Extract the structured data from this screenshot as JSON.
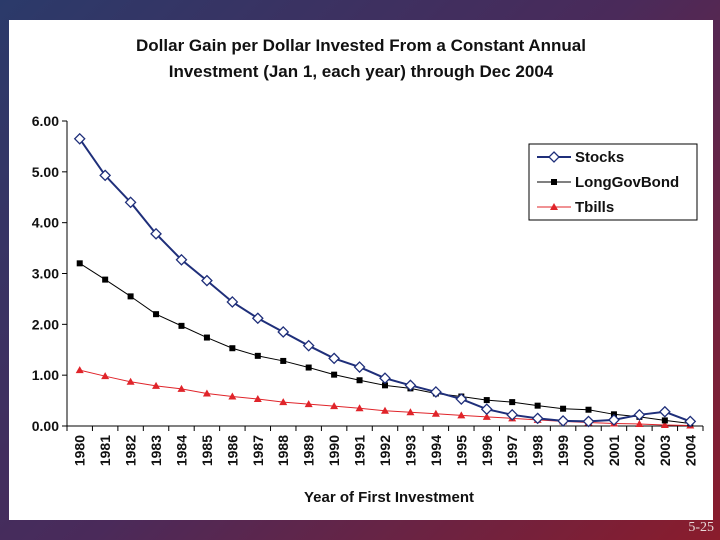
{
  "chart_data": {
    "type": "line",
    "title": [
      "Dollar Gain per Dollar Invested From a Constant Annual",
      "Investment (Jan 1, each year) through Dec 2004"
    ],
    "xlabel": "Year of First Investment",
    "ylabel": "",
    "categories": [
      "1980",
      "1981",
      "1982",
      "1983",
      "1984",
      "1985",
      "1986",
      "1987",
      "1988",
      "1989",
      "1990",
      "1991",
      "1992",
      "1993",
      "1994",
      "1995",
      "1996",
      "1997",
      "1998",
      "1999",
      "2000",
      "2001",
      "2002",
      "2003",
      "2004"
    ],
    "ylim": [
      0,
      6
    ],
    "yticks": [
      "0.00",
      "1.00",
      "2.00",
      "3.00",
      "4.00",
      "5.00",
      "6.00"
    ],
    "legend_position": "top-right",
    "series": [
      {
        "name": "Stocks",
        "color": "#1f2f7a",
        "marker": "diamond-open",
        "values": [
          5.65,
          4.93,
          4.4,
          3.78,
          3.27,
          2.86,
          2.44,
          2.12,
          1.85,
          1.58,
          1.33,
          1.16,
          0.94,
          0.8,
          0.67,
          0.53,
          0.33,
          0.22,
          0.15,
          0.1,
          0.09,
          0.12,
          0.22,
          0.28,
          0.09
        ]
      },
      {
        "name": "LongGovBond",
        "color": "#000000",
        "marker": "square",
        "values": [
          3.2,
          2.88,
          2.55,
          2.2,
          1.97,
          1.74,
          1.53,
          1.38,
          1.28,
          1.15,
          1.01,
          0.9,
          0.8,
          0.74,
          0.64,
          0.58,
          0.51,
          0.47,
          0.4,
          0.34,
          0.32,
          0.23,
          0.18,
          0.11,
          0.05
        ]
      },
      {
        "name": "Tbills",
        "color": "#e0242a",
        "marker": "triangle",
        "values": [
          1.1,
          0.98,
          0.87,
          0.79,
          0.73,
          0.64,
          0.58,
          0.53,
          0.47,
          0.43,
          0.39,
          0.35,
          0.3,
          0.27,
          0.24,
          0.21,
          0.18,
          0.15,
          0.12,
          0.09,
          0.07,
          0.05,
          0.04,
          0.02,
          0.01
        ]
      }
    ]
  },
  "slide_number": "5-25"
}
